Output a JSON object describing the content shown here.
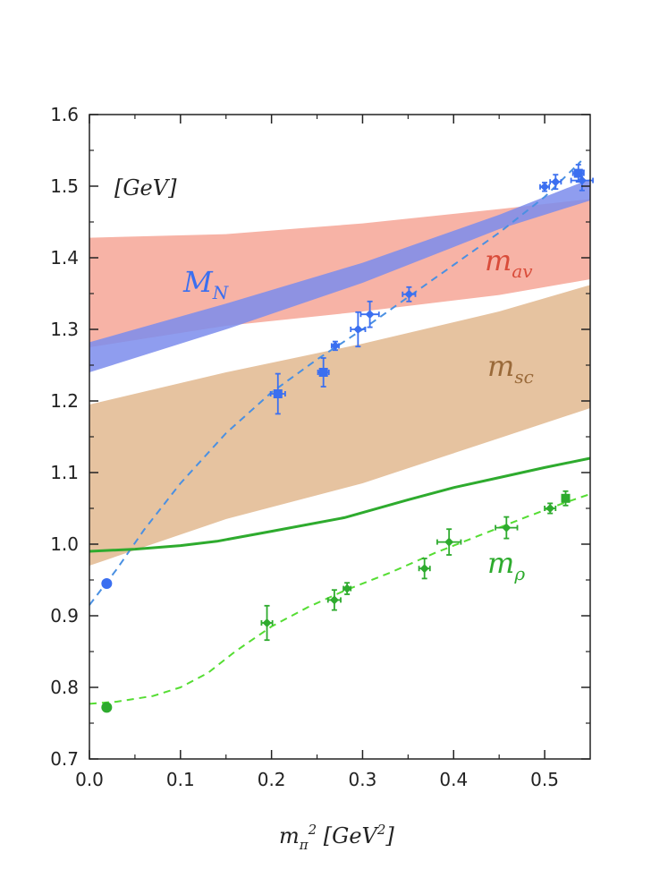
{
  "chart_data": {
    "type": "scatter",
    "title": "",
    "xlabel": "m_π² [GeV²]",
    "xlabel_parts": {
      "main": "m",
      "sub": "π",
      "sup": "2",
      "unit_open": " [GeV",
      "unit_sup": "2",
      "unit_close": "]"
    },
    "ylabel": "",
    "unit_label": "[GeV]",
    "xlim": [
      0.0,
      0.55
    ],
    "ylim": [
      0.7,
      1.6
    ],
    "xticks": [
      0.0,
      0.1,
      0.2,
      0.3,
      0.4,
      0.5
    ],
    "xtick_labels": [
      "0.0",
      "0.1",
      "0.2",
      "0.3",
      "0.4",
      "0.5"
    ],
    "yticks": [
      0.7,
      0.8,
      0.9,
      1.0,
      1.1,
      1.2,
      1.3,
      1.4,
      1.5,
      1.6
    ],
    "ytick_labels": [
      "0.7",
      "0.8",
      "0.9",
      "1.0",
      "1.1",
      "1.2",
      "1.3",
      "1.4",
      "1.5",
      "1.6"
    ],
    "grid": false,
    "colors": {
      "nucleon": "#3b6ff0",
      "nucleon_dashed": "#4a90e2",
      "nucleon_band": "#7b8cec",
      "m_av_band": "#f7b3a6",
      "m_av_text": "#d94c3a",
      "m_sc_band": "#e6c3a0",
      "m_sc_text": "#9a6a3a",
      "rho": "#2eab2e",
      "rho_dashed": "#55dd33"
    },
    "band_labels": [
      {
        "main": "M",
        "sub": "N",
        "color_key": "nucleon"
      },
      {
        "main": "m",
        "sub": "av",
        "color_key": "m_av_text"
      },
      {
        "main": "m",
        "sub": "sc",
        "color_key": "m_sc_text"
      },
      {
        "main": "m",
        "sub": "ρ",
        "color_key": "rho"
      }
    ],
    "bands": [
      {
        "name": "m_av",
        "x": [
          0.0,
          0.15,
          0.3,
          0.45,
          0.55
        ],
        "lower": [
          1.275,
          1.305,
          1.325,
          1.348,
          1.37
        ],
        "upper": [
          1.428,
          1.433,
          1.448,
          1.468,
          1.482
        ]
      },
      {
        "name": "m_sc",
        "x": [
          0.0,
          0.15,
          0.3,
          0.45,
          0.55
        ],
        "lower": [
          0.97,
          1.035,
          1.085,
          1.148,
          1.19
        ],
        "upper": [
          1.195,
          1.24,
          1.28,
          1.325,
          1.362
        ]
      },
      {
        "name": "M_N",
        "x": [
          0.0,
          0.15,
          0.3,
          0.45,
          0.55
        ],
        "lower": [
          1.24,
          1.3,
          1.365,
          1.44,
          1.48
        ],
        "upper": [
          1.282,
          1.336,
          1.393,
          1.46,
          1.51
        ]
      }
    ],
    "series": [
      {
        "name": "M_N fit",
        "style": "dashed",
        "x": [
          0.0,
          0.03,
          0.06,
          0.1,
          0.15,
          0.2,
          0.25,
          0.3,
          0.35,
          0.4,
          0.45,
          0.5,
          0.54
        ],
        "y": [
          0.915,
          0.965,
          1.02,
          1.085,
          1.155,
          1.212,
          1.258,
          1.3,
          1.345,
          1.39,
          1.435,
          1.485,
          1.535
        ]
      },
      {
        "name": "m_rho chiral",
        "style": "solid",
        "x": [
          0.0,
          0.05,
          0.1,
          0.14,
          0.2,
          0.28,
          0.35,
          0.4,
          0.45,
          0.5,
          0.55
        ],
        "y": [
          0.99,
          0.993,
          0.998,
          1.004,
          1.018,
          1.037,
          1.062,
          1.079,
          1.093,
          1.107,
          1.12
        ]
      },
      {
        "name": "m_rho fit",
        "style": "dashed",
        "x": [
          0.0,
          0.03,
          0.07,
          0.1,
          0.13,
          0.16,
          0.2,
          0.24,
          0.28,
          0.33,
          0.38,
          0.43,
          0.48,
          0.52,
          0.55
        ],
        "y": [
          0.777,
          0.78,
          0.788,
          0.8,
          0.82,
          0.85,
          0.885,
          0.912,
          0.935,
          0.96,
          0.988,
          1.013,
          1.038,
          1.057,
          1.07
        ]
      },
      {
        "name": "M_N lattice",
        "style": "points",
        "points": [
          {
            "x": 0.207,
            "y": 1.21,
            "dx": 0.008,
            "dy": 0.028,
            "shape": "square"
          },
          {
            "x": 0.257,
            "y": 1.24,
            "dx": 0.006,
            "dy": 0.02,
            "shape": "square"
          },
          {
            "x": 0.27,
            "y": 1.277,
            "dx": 0.004,
            "dy": 0.006,
            "shape": "diamond"
          },
          {
            "x": 0.295,
            "y": 1.3,
            "dx": 0.008,
            "dy": 0.024,
            "shape": "diamond"
          },
          {
            "x": 0.308,
            "y": 1.321,
            "dx": 0.01,
            "dy": 0.018,
            "shape": "diamond"
          },
          {
            "x": 0.351,
            "y": 1.349,
            "dx": 0.007,
            "dy": 0.01,
            "shape": "diamond"
          },
          {
            "x": 0.5,
            "y": 1.499,
            "dx": 0.005,
            "dy": 0.006,
            "shape": "diamond"
          },
          {
            "x": 0.512,
            "y": 1.506,
            "dx": 0.006,
            "dy": 0.01,
            "shape": "diamond"
          },
          {
            "x": 0.537,
            "y": 1.518,
            "dx": 0.006,
            "dy": 0.012,
            "shape": "square"
          },
          {
            "x": 0.541,
            "y": 1.508,
            "dx": 0.012,
            "dy": 0.014,
            "shape": "diamond"
          }
        ]
      },
      {
        "name": "m_rho lattice",
        "style": "points",
        "points": [
          {
            "x": 0.195,
            "y": 0.89,
            "dx": 0.006,
            "dy": 0.024,
            "shape": "diamond"
          },
          {
            "x": 0.269,
            "y": 0.922,
            "dx": 0.007,
            "dy": 0.014,
            "shape": "diamond"
          },
          {
            "x": 0.283,
            "y": 0.938,
            "dx": 0.004,
            "dy": 0.008,
            "shape": "diamond"
          },
          {
            "x": 0.368,
            "y": 0.966,
            "dx": 0.006,
            "dy": 0.014,
            "shape": "diamond"
          },
          {
            "x": 0.395,
            "y": 1.003,
            "dx": 0.013,
            "dy": 0.018,
            "shape": "diamond"
          },
          {
            "x": 0.458,
            "y": 1.023,
            "dx": 0.012,
            "dy": 0.015,
            "shape": "diamond"
          },
          {
            "x": 0.506,
            "y": 1.05,
            "dx": 0.006,
            "dy": 0.007,
            "shape": "diamond"
          },
          {
            "x": 0.523,
            "y": 1.064,
            "dx": 0.004,
            "dy": 0.01,
            "shape": "square"
          }
        ]
      },
      {
        "name": "physical points",
        "style": "points",
        "points": [
          {
            "x": 0.019,
            "y": 0.945,
            "shape": "circle",
            "color_key": "nucleon"
          },
          {
            "x": 0.019,
            "y": 0.772,
            "shape": "circle",
            "color_key": "rho"
          }
        ]
      }
    ]
  }
}
